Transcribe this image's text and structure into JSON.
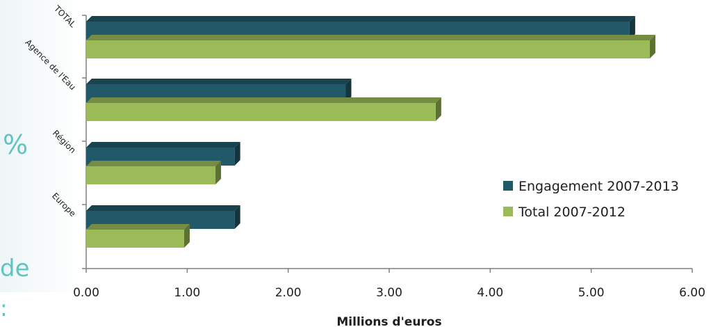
{
  "background_fragments": [
    "%",
    "de",
    ":"
  ],
  "chart_data": {
    "type": "bar",
    "orientation": "horizontal",
    "categories": [
      "TOTAL",
      "Agence de l'Eau",
      "Région",
      "Europe"
    ],
    "series": [
      {
        "name": "Engagement 2007-2013",
        "values": [
          5.38,
          2.57,
          1.47,
          1.47
        ],
        "color": "#215968"
      },
      {
        "name": "Total 2007-2012",
        "values": [
          5.58,
          3.46,
          1.28,
          0.97
        ],
        "color": "#9bbb59"
      }
    ],
    "xlabel": "Millions d'euros",
    "xlim": [
      0,
      6
    ],
    "xticks": [
      "0.00",
      "1.00",
      "2.00",
      "3.00",
      "4.00",
      "5.00",
      "6.00"
    ],
    "grid": false,
    "legend": "right"
  }
}
